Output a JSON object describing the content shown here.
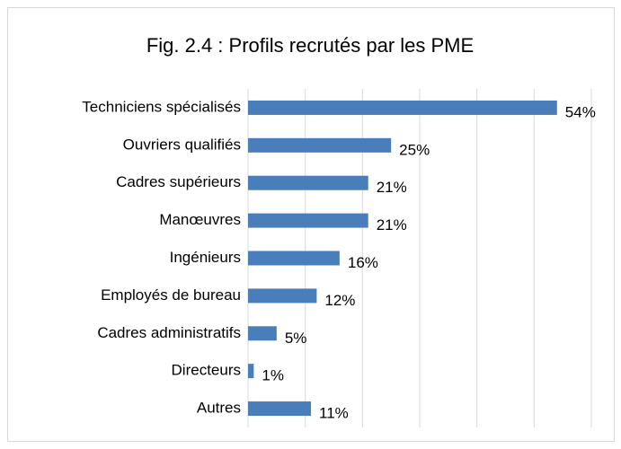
{
  "chart_data": {
    "type": "bar",
    "orientation": "horizontal",
    "title": "Fig. 2.4 : Profils recrutés par les PME",
    "categories": [
      "Techniciens spécialisés",
      "Ouvriers qualifiés",
      "Cadres supérieurs",
      "Manœuvres",
      "Ingénieurs",
      "Employés de bureau",
      "Cadres administratifs",
      "Directeurs",
      "Autres"
    ],
    "values": [
      54,
      25,
      21,
      21,
      16,
      12,
      5,
      1,
      11
    ],
    "value_labels": [
      "54%",
      "25%",
      "21%",
      "21%",
      "16%",
      "12%",
      "5%",
      "1%",
      "11%"
    ],
    "color": "#4a7ebb",
    "xlim": [
      0,
      60
    ],
    "xticks": [
      0,
      10,
      20,
      30,
      40,
      50,
      60
    ],
    "grid": true
  }
}
